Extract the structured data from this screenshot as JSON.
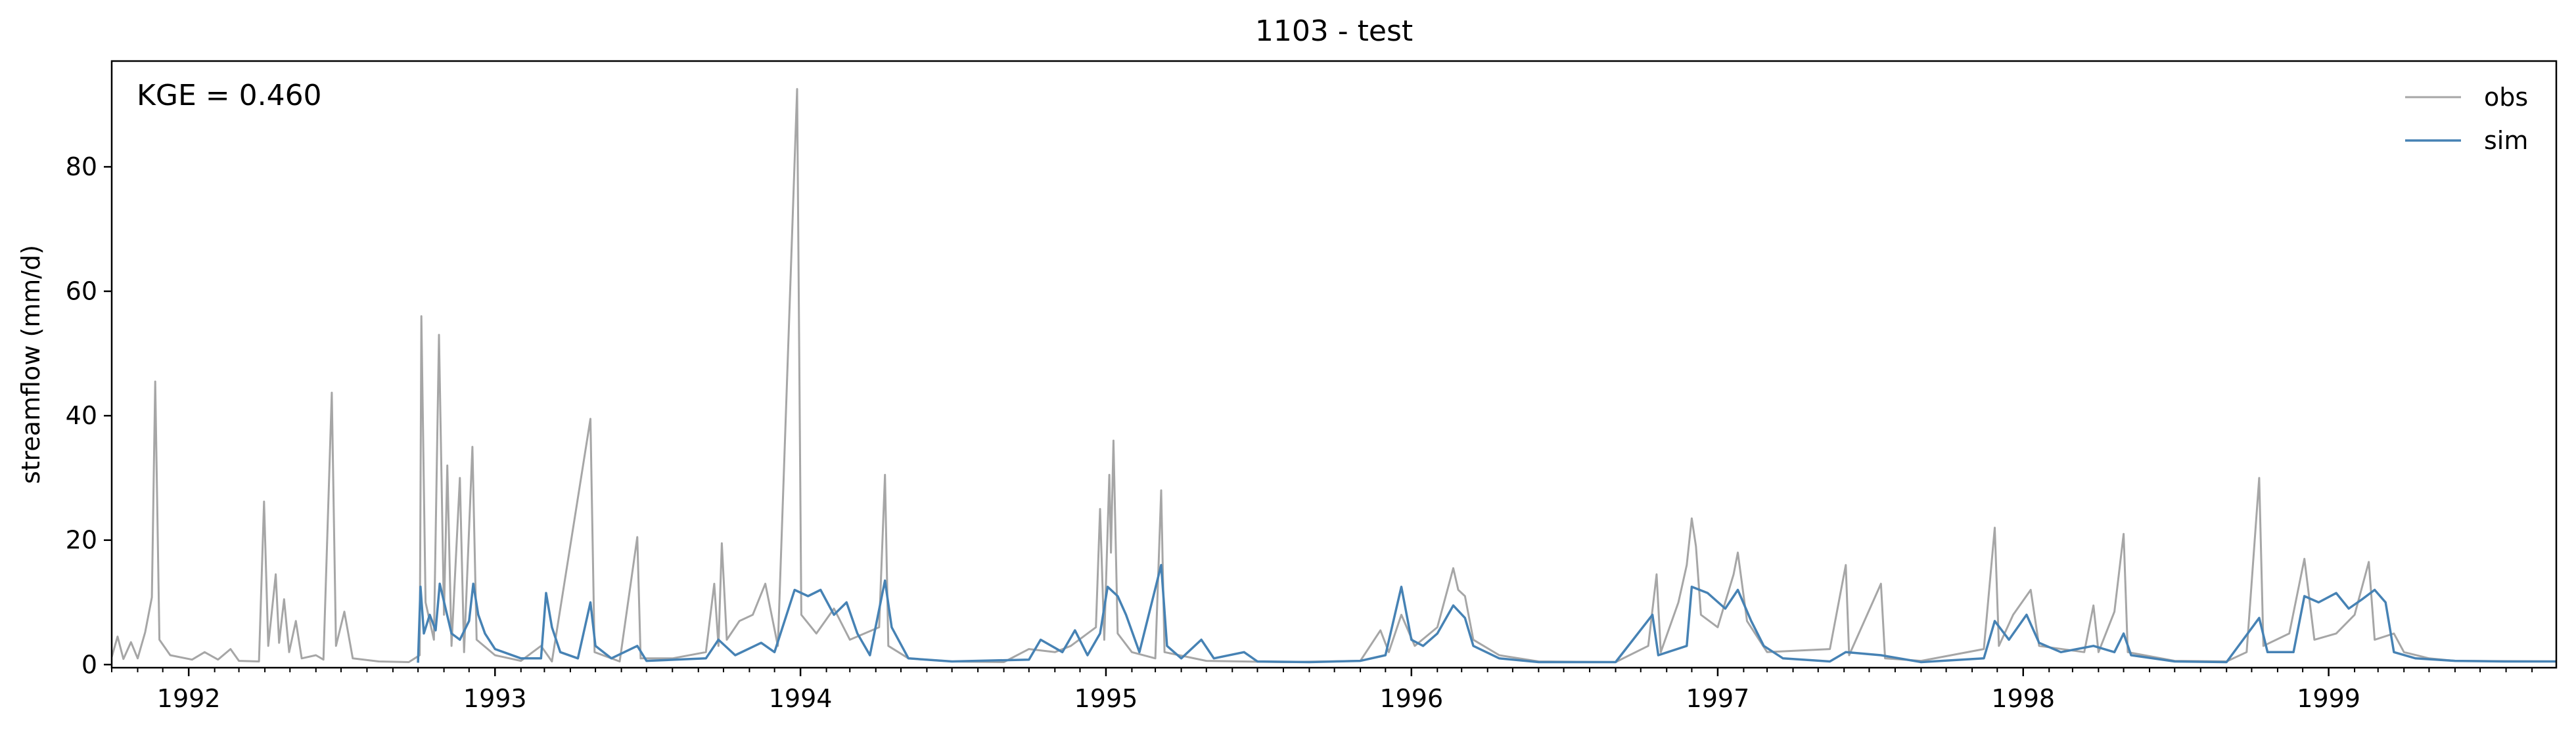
{
  "chart_data": {
    "type": "line",
    "title": "1103 - test",
    "xlabel": "",
    "ylabel": "streamflow (mm/d)",
    "annotation": "KGE = 0.460",
    "x_range": [
      "1991-10-01",
      "1999-09-30"
    ],
    "ylim": [
      -0.5,
      97
    ],
    "yticks": [
      0,
      20,
      40,
      60,
      80
    ],
    "xticks": [
      {
        "date": "1992-01-01",
        "label": "1992"
      },
      {
        "date": "1993-01-01",
        "label": "1993"
      },
      {
        "date": "1994-01-01",
        "label": "1994"
      },
      {
        "date": "1995-01-01",
        "label": "1995"
      },
      {
        "date": "1996-01-01",
        "label": "1996"
      },
      {
        "date": "1997-01-01",
        "label": "1997"
      },
      {
        "date": "1998-01-01",
        "label": "1998"
      },
      {
        "date": "1999-01-01",
        "label": "1999"
      }
    ],
    "grid": false,
    "legend_position": "upper right",
    "series": [
      {
        "name": "obs",
        "color": "#a6a6a6",
        "points": [
          [
            "1991-10-01",
            1.2
          ],
          [
            "1991-10-08",
            4.5
          ],
          [
            "1991-10-15",
            0.9
          ],
          [
            "1991-10-24",
            3.6
          ],
          [
            "1991-11-01",
            1.0
          ],
          [
            "1991-11-10",
            5.2
          ],
          [
            "1991-11-18",
            10.8
          ],
          [
            "1991-11-22",
            45.5
          ],
          [
            "1991-11-27",
            4.0
          ],
          [
            "1991-12-10",
            1.5
          ],
          [
            "1992-01-05",
            0.8
          ],
          [
            "1992-01-20",
            2.0
          ],
          [
            "1992-02-05",
            0.8
          ],
          [
            "1992-02-20",
            2.5
          ],
          [
            "1992-03-01",
            0.6
          ],
          [
            "1992-03-25",
            0.5
          ],
          [
            "1992-03-31",
            26.2
          ],
          [
            "1992-04-05",
            3.0
          ],
          [
            "1992-04-14",
            14.5
          ],
          [
            "1992-04-18",
            3.5
          ],
          [
            "1992-04-24",
            10.5
          ],
          [
            "1992-04-30",
            2.0
          ],
          [
            "1992-05-08",
            7.0
          ],
          [
            "1992-05-15",
            1.0
          ],
          [
            "1992-06-01",
            1.5
          ],
          [
            "1992-06-10",
            0.8
          ],
          [
            "1992-06-20",
            43.7
          ],
          [
            "1992-06-25",
            3.0
          ],
          [
            "1992-07-05",
            8.5
          ],
          [
            "1992-07-15",
            1.0
          ],
          [
            "1992-08-15",
            0.5
          ],
          [
            "1992-09-20",
            0.4
          ],
          [
            "1992-10-03",
            1.5
          ],
          [
            "1992-10-05",
            56.0
          ],
          [
            "1992-10-10",
            10.0
          ],
          [
            "1992-10-20",
            4.0
          ],
          [
            "1992-10-26",
            53.0
          ],
          [
            "1992-11-01",
            8.0
          ],
          [
            "1992-11-05",
            32.0
          ],
          [
            "1992-11-10",
            3.0
          ],
          [
            "1992-11-20",
            30.0
          ],
          [
            "1992-11-25",
            2.0
          ],
          [
            "1992-12-05",
            35.0
          ],
          [
            "1992-12-10",
            4.0
          ],
          [
            "1993-01-01",
            1.5
          ],
          [
            "1993-02-01",
            0.6
          ],
          [
            "1993-02-25",
            3.0
          ],
          [
            "1993-03-10",
            0.5
          ],
          [
            "1993-04-25",
            39.5
          ],
          [
            "1993-04-30",
            2.0
          ],
          [
            "1993-05-30",
            0.5
          ],
          [
            "1993-06-20",
            20.5
          ],
          [
            "1993-06-24",
            1.0
          ],
          [
            "1993-08-01",
            1.0
          ],
          [
            "1993-09-10",
            2.0
          ],
          [
            "1993-09-20",
            13.0
          ],
          [
            "1993-09-25",
            3.0
          ],
          [
            "1993-09-29",
            19.5
          ],
          [
            "1993-10-05",
            4.0
          ],
          [
            "1993-10-20",
            7.0
          ],
          [
            "1993-11-05",
            8.0
          ],
          [
            "1993-11-20",
            13.0
          ],
          [
            "1993-12-05",
            3.0
          ],
          [
            "1993-12-28",
            92.5
          ],
          [
            "1994-01-02",
            8.0
          ],
          [
            "1994-01-20",
            5.0
          ],
          [
            "1994-02-10",
            9.0
          ],
          [
            "1994-03-01",
            4.0
          ],
          [
            "1994-04-05",
            6.0
          ],
          [
            "1994-04-12",
            30.5
          ],
          [
            "1994-04-16",
            3.0
          ],
          [
            "1994-05-10",
            1.0
          ],
          [
            "1994-07-01",
            0.5
          ],
          [
            "1994-09-01",
            0.4
          ],
          [
            "1994-10-01",
            2.5
          ],
          [
            "1994-11-01",
            2.0
          ],
          [
            "1994-11-20",
            3.0
          ],
          [
            "1994-12-20",
            6.0
          ],
          [
            "1994-12-25",
            25.0
          ],
          [
            "1994-12-30",
            4.0
          ],
          [
            "1995-01-05",
            30.5
          ],
          [
            "1995-01-07",
            18.0
          ],
          [
            "1995-01-10",
            36.0
          ],
          [
            "1995-01-15",
            5.0
          ],
          [
            "1995-02-01",
            2.0
          ],
          [
            "1995-03-01",
            1.0
          ],
          [
            "1995-03-08",
            28.0
          ],
          [
            "1995-03-12",
            2.0
          ],
          [
            "1995-05-01",
            0.6
          ],
          [
            "1995-08-01",
            0.4
          ],
          [
            "1995-11-01",
            0.6
          ],
          [
            "1995-11-25",
            5.5
          ],
          [
            "1995-12-05",
            2.0
          ],
          [
            "1995-12-20",
            8.0
          ],
          [
            "1996-01-05",
            3.0
          ],
          [
            "1996-02-01",
            6.0
          ],
          [
            "1996-02-20",
            15.5
          ],
          [
            "1996-02-26",
            12.0
          ],
          [
            "1996-03-05",
            11.0
          ],
          [
            "1996-03-15",
            4.0
          ],
          [
            "1996-04-15",
            1.5
          ],
          [
            "1996-06-01",
            0.5
          ],
          [
            "1996-09-01",
            0.4
          ],
          [
            "1996-10-10",
            3.0
          ],
          [
            "1996-10-20",
            14.5
          ],
          [
            "1996-10-25",
            2.0
          ],
          [
            "1996-11-15",
            10.0
          ],
          [
            "1996-11-25",
            16.0
          ],
          [
            "1996-12-01",
            23.5
          ],
          [
            "1996-12-06",
            19.0
          ],
          [
            "1996-12-12",
            8.0
          ],
          [
            "1997-01-01",
            6.0
          ],
          [
            "1997-01-20",
            14.5
          ],
          [
            "1997-01-25",
            18.0
          ],
          [
            "1997-02-05",
            7.0
          ],
          [
            "1997-03-01",
            2.0
          ],
          [
            "1997-05-15",
            2.5
          ],
          [
            "1997-06-03",
            16.0
          ],
          [
            "1997-06-07",
            1.5
          ],
          [
            "1997-07-15",
            13.0
          ],
          [
            "1997-07-20",
            1.0
          ],
          [
            "1997-09-01",
            0.6
          ],
          [
            "1997-11-15",
            2.5
          ],
          [
            "1997-11-28",
            22.0
          ],
          [
            "1997-12-03",
            3.0
          ],
          [
            "1997-12-20",
            8.0
          ],
          [
            "1998-01-10",
            12.0
          ],
          [
            "1998-01-20",
            3.0
          ],
          [
            "1998-03-15",
            2.0
          ],
          [
            "1998-03-26",
            9.5
          ],
          [
            "1998-04-01",
            2.0
          ],
          [
            "1998-04-20",
            8.5
          ],
          [
            "1998-05-01",
            21.0
          ],
          [
            "1998-05-06",
            2.0
          ],
          [
            "1998-07-01",
            0.6
          ],
          [
            "1998-09-01",
            0.5
          ],
          [
            "1998-09-25",
            2.0
          ],
          [
            "1998-10-10",
            30.0
          ],
          [
            "1998-10-15",
            3.0
          ],
          [
            "1998-11-15",
            5.0
          ],
          [
            "1998-12-03",
            17.0
          ],
          [
            "1998-12-15",
            4.0
          ],
          [
            "1999-01-10",
            5.0
          ],
          [
            "1999-02-01",
            8.0
          ],
          [
            "1999-02-18",
            16.5
          ],
          [
            "1999-02-25",
            4.0
          ],
          [
            "1999-03-20",
            5.0
          ],
          [
            "1999-04-01",
            2.0
          ],
          [
            "1999-05-01",
            1.0
          ],
          [
            "1999-06-01",
            0.6
          ],
          [
            "1999-09-30",
            0.5
          ]
        ]
      },
      {
        "name": "sim",
        "color": "#4682b4",
        "points": [
          [
            "1992-10-01",
            0.3
          ],
          [
            "1992-10-04",
            12.5
          ],
          [
            "1992-10-08",
            5.0
          ],
          [
            "1992-10-15",
            8.0
          ],
          [
            "1992-10-22",
            5.5
          ],
          [
            "1992-10-27",
            13.0
          ],
          [
            "1992-11-03",
            9.0
          ],
          [
            "1992-11-10",
            5.0
          ],
          [
            "1992-11-20",
            4.0
          ],
          [
            "1992-12-01",
            7.0
          ],
          [
            "1992-12-06",
            13.0
          ],
          [
            "1992-12-12",
            8.0
          ],
          [
            "1992-12-20",
            5.0
          ],
          [
            "1993-01-01",
            2.5
          ],
          [
            "1993-02-01",
            1.0
          ],
          [
            "1993-02-25",
            1.0
          ],
          [
            "1993-03-03",
            11.5
          ],
          [
            "1993-03-10",
            6.0
          ],
          [
            "1993-03-20",
            2.0
          ],
          [
            "1993-04-10",
            1.0
          ],
          [
            "1993-04-25",
            10.0
          ],
          [
            "1993-05-01",
            3.0
          ],
          [
            "1993-05-20",
            1.0
          ],
          [
            "1993-06-20",
            3.0
          ],
          [
            "1993-07-01",
            0.6
          ],
          [
            "1993-09-10",
            1.0
          ],
          [
            "1993-09-25",
            4.0
          ],
          [
            "1993-10-15",
            1.5
          ],
          [
            "1993-11-15",
            3.5
          ],
          [
            "1993-12-01",
            2.0
          ],
          [
            "1993-12-25",
            12.0
          ],
          [
            "1994-01-10",
            11.0
          ],
          [
            "1994-01-25",
            12.0
          ],
          [
            "1994-02-10",
            8.0
          ],
          [
            "1994-02-25",
            10.0
          ],
          [
            "1994-03-10",
            5.0
          ],
          [
            "1994-03-25",
            1.5
          ],
          [
            "1994-04-12",
            13.5
          ],
          [
            "1994-04-20",
            6.0
          ],
          [
            "1994-05-10",
            1.0
          ],
          [
            "1994-07-01",
            0.5
          ],
          [
            "1994-10-01",
            0.8
          ],
          [
            "1994-10-15",
            4.0
          ],
          [
            "1994-11-10",
            2.0
          ],
          [
            "1994-11-25",
            5.5
          ],
          [
            "1994-12-10",
            1.5
          ],
          [
            "1994-12-25",
            5.0
          ],
          [
            "1995-01-03",
            12.5
          ],
          [
            "1995-01-15",
            11.0
          ],
          [
            "1995-01-25",
            8.0
          ],
          [
            "1995-02-10",
            2.0
          ],
          [
            "1995-03-08",
            16.0
          ],
          [
            "1995-03-15",
            3.0
          ],
          [
            "1995-04-01",
            1.0
          ],
          [
            "1995-04-25",
            4.0
          ],
          [
            "1995-05-10",
            1.0
          ],
          [
            "1995-06-15",
            2.0
          ],
          [
            "1995-07-01",
            0.5
          ],
          [
            "1995-09-01",
            0.4
          ],
          [
            "1995-11-01",
            0.6
          ],
          [
            "1995-12-01",
            1.5
          ],
          [
            "1995-12-20",
            12.5
          ],
          [
            "1996-01-01",
            4.0
          ],
          [
            "1996-01-15",
            3.0
          ],
          [
            "1996-02-01",
            5.0
          ],
          [
            "1996-02-20",
            9.5
          ],
          [
            "1996-03-05",
            7.5
          ],
          [
            "1996-03-15",
            3.0
          ],
          [
            "1996-04-15",
            1.0
          ],
          [
            "1996-06-01",
            0.4
          ],
          [
            "1996-09-01",
            0.4
          ],
          [
            "1996-10-15",
            8.0
          ],
          [
            "1996-10-22",
            1.5
          ],
          [
            "1996-11-25",
            3.0
          ],
          [
            "1996-12-01",
            12.5
          ],
          [
            "1996-12-20",
            11.5
          ],
          [
            "1997-01-10",
            9.0
          ],
          [
            "1997-01-25",
            12.0
          ],
          [
            "1997-02-10",
            7.0
          ],
          [
            "1997-02-25",
            3.0
          ],
          [
            "1997-03-20",
            1.0
          ],
          [
            "1997-05-15",
            0.5
          ],
          [
            "1997-06-03",
            2.0
          ],
          [
            "1997-07-15",
            1.5
          ],
          [
            "1997-09-01",
            0.4
          ],
          [
            "1997-11-15",
            1.0
          ],
          [
            "1997-11-28",
            7.0
          ],
          [
            "1997-12-15",
            4.0
          ],
          [
            "1998-01-05",
            8.0
          ],
          [
            "1998-01-20",
            3.5
          ],
          [
            "1998-02-15",
            2.0
          ],
          [
            "1998-03-26",
            3.0
          ],
          [
            "1998-04-20",
            2.0
          ],
          [
            "1998-05-01",
            5.0
          ],
          [
            "1998-05-10",
            1.5
          ],
          [
            "1998-07-01",
            0.5
          ],
          [
            "1998-09-01",
            0.4
          ],
          [
            "1998-10-10",
            7.5
          ],
          [
            "1998-10-20",
            2.0
          ],
          [
            "1998-11-20",
            2.0
          ],
          [
            "1998-12-03",
            11.0
          ],
          [
            "1998-12-20",
            10.0
          ],
          [
            "1999-01-10",
            11.5
          ],
          [
            "1999-01-25",
            9.0
          ],
          [
            "1999-02-10",
            10.5
          ],
          [
            "1999-02-25",
            12.0
          ],
          [
            "1999-03-10",
            10.0
          ],
          [
            "1999-03-20",
            2.0
          ],
          [
            "1999-04-15",
            1.0
          ],
          [
            "1999-06-01",
            0.6
          ],
          [
            "1999-08-01",
            0.5
          ],
          [
            "1999-09-30",
            0.5
          ]
        ]
      }
    ]
  }
}
